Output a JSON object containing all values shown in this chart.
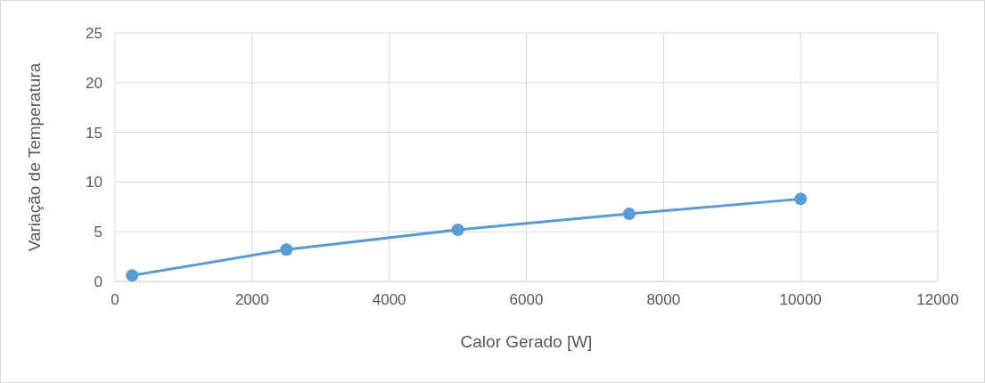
{
  "chart_data": {
    "type": "line",
    "xlabel": "Calor Gerado [W]",
    "ylabel": "Variação de Temperatura",
    "x": [
      250,
      2500,
      5000,
      7500,
      10000
    ],
    "series": [
      {
        "color": "#5b9bd5",
        "values": [
          0.6,
          3.2,
          5.2,
          6.8,
          8.3
        ]
      }
    ],
    "xlim": [
      0,
      12000
    ],
    "xticks": [
      0,
      2000,
      4000,
      6000,
      8000,
      10000,
      12000
    ],
    "ylim": [
      0,
      25
    ],
    "yticks": [
      0,
      5,
      10,
      15,
      20,
      25
    ],
    "grid": true,
    "marker": "circle",
    "line_style": "solid"
  }
}
